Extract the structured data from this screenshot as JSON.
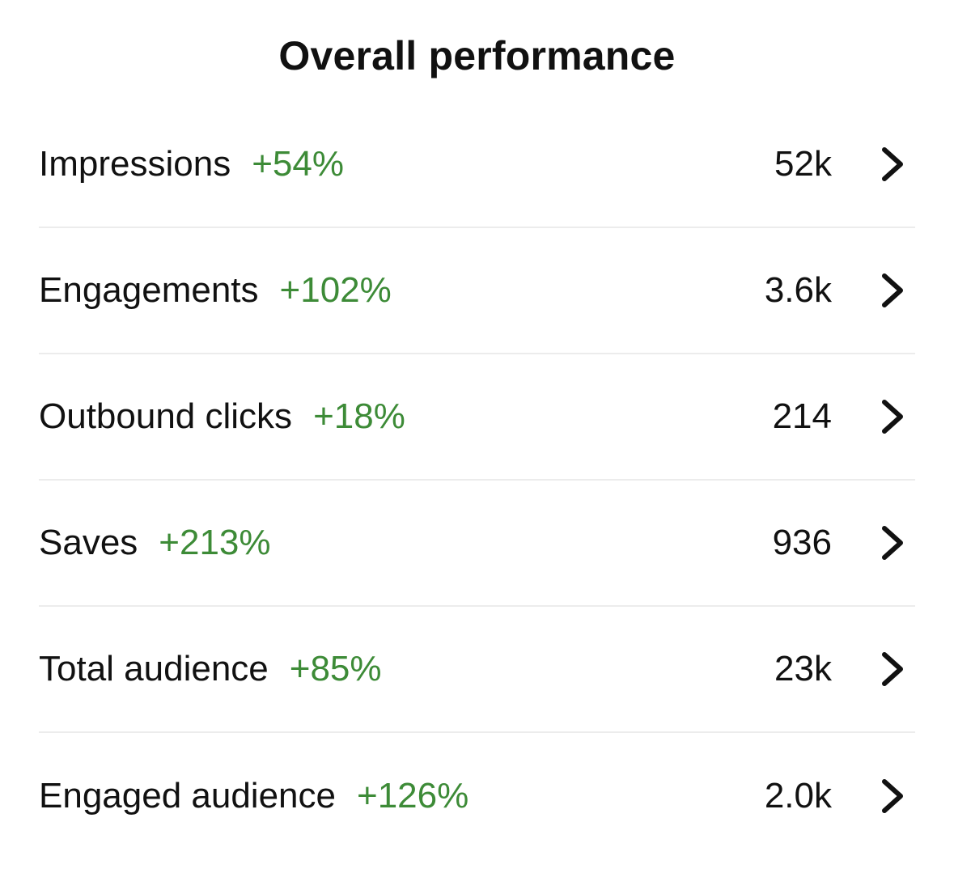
{
  "page_title": "Overall performance",
  "theme": {
    "positive_color": "#3d8b37",
    "text_color": "#111111",
    "divider_color": "#ececec"
  },
  "metrics": [
    {
      "label": "Impressions",
      "change": "+54%",
      "value": "52k",
      "icon": "chevron-right-icon"
    },
    {
      "label": "Engagements",
      "change": "+102%",
      "value": "3.6k",
      "icon": "chevron-right-icon"
    },
    {
      "label": "Outbound clicks",
      "change": "+18%",
      "value": "214",
      "icon": "chevron-right-icon"
    },
    {
      "label": "Saves",
      "change": "+213%",
      "value": "936",
      "icon": "chevron-right-icon"
    },
    {
      "label": "Total audience",
      "change": "+85%",
      "value": "23k",
      "icon": "chevron-right-icon"
    },
    {
      "label": "Engaged audience",
      "change": "+126%",
      "value": "2.0k",
      "icon": "chevron-right-icon"
    }
  ]
}
